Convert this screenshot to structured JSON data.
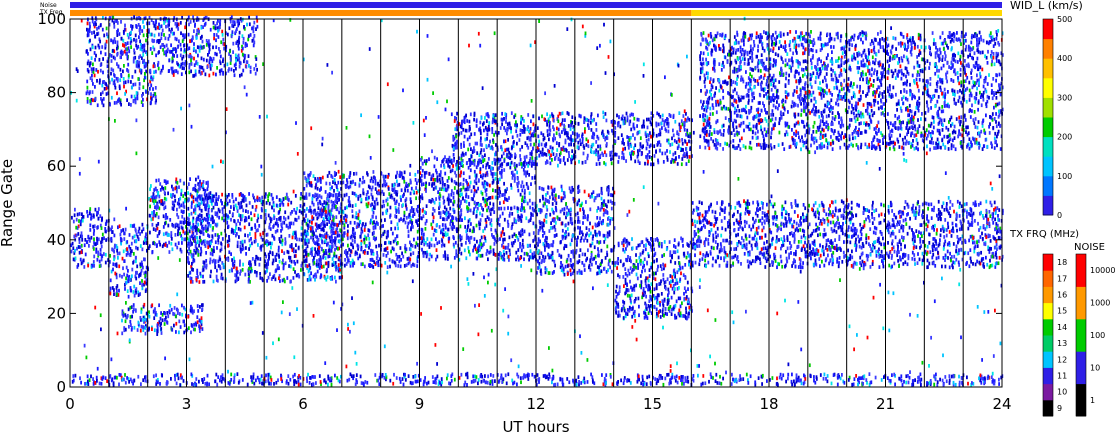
{
  "chart_data": {
    "type": "heatmap",
    "xlabel": "UT hours",
    "ylabel": "Range Gate",
    "xlim": [
      0,
      24
    ],
    "ylim": [
      0,
      100
    ],
    "xticks": [
      "0",
      "3",
      "6",
      "9",
      "12",
      "15",
      "18",
      "21",
      "24"
    ],
    "yticks": [
      "0",
      "20",
      "40",
      "60",
      "80",
      "100"
    ],
    "hour_lines": [
      1,
      2,
      3,
      4,
      5,
      6,
      7,
      8,
      9,
      10,
      11,
      12,
      13,
      14,
      15,
      16,
      17,
      18,
      19,
      20,
      21,
      22,
      23
    ],
    "status_bars": {
      "noise_label": "Noise",
      "txfreq_label": "TX Freq",
      "noise_color": "#2f1fe6",
      "txfreq_segments": [
        {
          "from": 0,
          "to": 16,
          "color": "#ff8c00"
        },
        {
          "from": 16,
          "to": 24,
          "color": "#ffd800"
        }
      ]
    },
    "echo_regions": [
      {
        "x0": 0.0,
        "x1": 1.0,
        "y0": 32,
        "y1": 48
      },
      {
        "x0": 1.0,
        "x1": 2.0,
        "y0": 24,
        "y1": 44
      },
      {
        "x0": 2.0,
        "x1": 3.6,
        "y0": 36,
        "y1": 56
      },
      {
        "x0": 3.0,
        "x1": 7.0,
        "y0": 28,
        "y1": 52
      },
      {
        "x0": 6.0,
        "x1": 9.0,
        "y0": 32,
        "y1": 58
      },
      {
        "x0": 9.0,
        "x1": 12.0,
        "y0": 34,
        "y1": 62
      },
      {
        "x0": 12.0,
        "x1": 14.0,
        "y0": 30,
        "y1": 54
      },
      {
        "x0": 14.0,
        "x1": 16.0,
        "y0": 18,
        "y1": 40
      },
      {
        "x0": 16.0,
        "x1": 24.0,
        "y0": 32,
        "y1": 50
      },
      {
        "x0": 0.4,
        "x1": 2.2,
        "y0": 76,
        "y1": 100
      },
      {
        "x0": 2.2,
        "x1": 4.8,
        "y0": 84,
        "y1": 100
      },
      {
        "x0": 1.3,
        "x1": 3.4,
        "y0": 14,
        "y1": 22
      },
      {
        "x0": 16.2,
        "x1": 24.0,
        "y0": 64,
        "y1": 96
      },
      {
        "x0": 0.0,
        "x1": 24.0,
        "y0": 0,
        "y1": 3
      },
      {
        "x0": 9.8,
        "x1": 16.0,
        "y0": 60,
        "y1": 74
      }
    ],
    "sparse_count": 520,
    "point_colors": [
      "#1a1aff",
      "#3b3bff",
      "#0000d0",
      "#00c4ff",
      "#00e5e5",
      "#ff0000",
      "#00cc00"
    ],
    "velocity_scale": {
      "label": "WID_L (km/s)",
      "ticks": [
        "0",
        "100",
        "200",
        "300",
        "400",
        "500"
      ],
      "colors": [
        "#2f1fe6",
        "#0077ff",
        "#00c4ff",
        "#00e0c0",
        "#00cc00",
        "#a0e000",
        "#ffff00",
        "#ffc000",
        "#ff8000",
        "#ff0000"
      ]
    },
    "txfreq_scale": {
      "label": "TX FRQ (MHz)",
      "ticks": [
        "9",
        "10",
        "11",
        "12",
        "13",
        "14",
        "15",
        "16",
        "17",
        "18"
      ],
      "colors": [
        "#000000",
        "#7a1aa0",
        "#2f1fe6",
        "#00c4ff",
        "#00cc66",
        "#00cc00",
        "#ffff00",
        "#ff9900",
        "#ff6600",
        "#ff0000"
      ]
    },
    "noise_scale": {
      "label": "NOISE",
      "ticks": [
        "1",
        "10",
        "100",
        "1000",
        "10000"
      ],
      "colors": [
        "#000000",
        "#2f1fe6",
        "#00cc00",
        "#ff9900",
        "#ff0000"
      ]
    }
  }
}
